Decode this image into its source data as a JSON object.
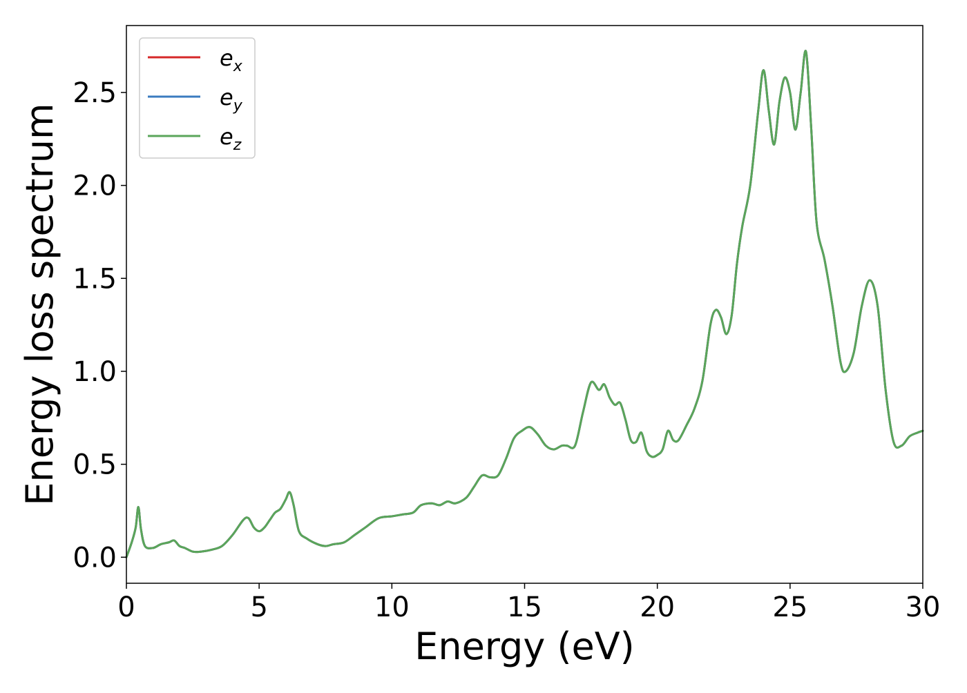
{
  "chart_data": {
    "type": "line",
    "title": "",
    "xlabel": "Energy (eV)",
    "ylabel": "Energy loss spectrum",
    "xlim": [
      0,
      30
    ],
    "ylim": [
      -0.14,
      2.86
    ],
    "xticks": [
      0,
      5,
      10,
      15,
      20,
      25,
      30
    ],
    "xtick_labels": [
      "0",
      "5",
      "10",
      "15",
      "20",
      "25",
      "30"
    ],
    "yticks": [
      0.0,
      0.5,
      1.0,
      1.5,
      2.0,
      2.5
    ],
    "ytick_labels": [
      "0.0",
      "0.5",
      "1.0",
      "1.5",
      "2.0",
      "2.5"
    ],
    "grid": false,
    "legend_position": "top-left",
    "series": [
      {
        "name": "e",
        "subscript": "x",
        "color": "#d62728",
        "shares_values_with": "e_z"
      },
      {
        "name": "e",
        "subscript": "y",
        "color": "#3a7bbf",
        "shares_values_with": "e_z"
      },
      {
        "name": "e",
        "subscript": "z",
        "color": "#5aa55a"
      }
    ],
    "x": [
      0,
      0.2,
      0.35,
      0.45,
      0.55,
      0.7,
      1.0,
      1.3,
      1.6,
      1.8,
      2.0,
      2.2,
      2.5,
      2.8,
      3.2,
      3.6,
      4.0,
      4.4,
      4.6,
      4.8,
      5.0,
      5.2,
      5.4,
      5.6,
      5.8,
      6.0,
      6.15,
      6.3,
      6.5,
      6.8,
      7.2,
      7.5,
      7.8,
      8.2,
      8.6,
      9.0,
      9.5,
      10.0,
      10.4,
      10.8,
      11.1,
      11.5,
      11.8,
      12.1,
      12.4,
      12.8,
      13.1,
      13.4,
      13.7,
      14.0,
      14.3,
      14.6,
      14.9,
      15.2,
      15.5,
      15.8,
      16.1,
      16.4,
      16.6,
      16.9,
      17.2,
      17.5,
      17.8,
      18.0,
      18.2,
      18.4,
      18.6,
      18.8,
      19.0,
      19.2,
      19.4,
      19.6,
      19.8,
      20.0,
      20.2,
      20.4,
      20.6,
      20.8,
      21.1,
      21.4,
      21.7,
      22.0,
      22.2,
      22.4,
      22.6,
      22.8,
      23.0,
      23.2,
      23.5,
      23.8,
      24.0,
      24.2,
      24.4,
      24.6,
      24.8,
      25.0,
      25.2,
      25.4,
      25.6,
      25.8,
      26.0,
      26.3,
      26.6,
      26.9,
      27.1,
      27.4,
      27.7,
      28.0,
      28.3,
      28.6,
      28.9,
      29.2,
      29.5,
      29.8,
      30.0
    ],
    "values": [
      0.0,
      0.08,
      0.16,
      0.27,
      0.15,
      0.06,
      0.05,
      0.07,
      0.08,
      0.09,
      0.06,
      0.05,
      0.03,
      0.03,
      0.04,
      0.06,
      0.12,
      0.2,
      0.21,
      0.16,
      0.14,
      0.16,
      0.2,
      0.24,
      0.26,
      0.31,
      0.35,
      0.28,
      0.14,
      0.1,
      0.07,
      0.06,
      0.07,
      0.08,
      0.12,
      0.16,
      0.21,
      0.22,
      0.23,
      0.24,
      0.28,
      0.29,
      0.28,
      0.3,
      0.29,
      0.32,
      0.38,
      0.44,
      0.43,
      0.44,
      0.53,
      0.64,
      0.68,
      0.7,
      0.66,
      0.6,
      0.58,
      0.6,
      0.6,
      0.6,
      0.78,
      0.94,
      0.9,
      0.93,
      0.86,
      0.82,
      0.83,
      0.74,
      0.63,
      0.62,
      0.67,
      0.57,
      0.54,
      0.55,
      0.58,
      0.68,
      0.63,
      0.63,
      0.71,
      0.8,
      0.95,
      1.25,
      1.33,
      1.29,
      1.2,
      1.3,
      1.58,
      1.78,
      2.0,
      2.4,
      2.62,
      2.4,
      2.22,
      2.45,
      2.58,
      2.5,
      2.3,
      2.5,
      2.72,
      2.3,
      1.8,
      1.6,
      1.35,
      1.05,
      1.0,
      1.1,
      1.35,
      1.49,
      1.35,
      0.9,
      0.62,
      0.6,
      0.65,
      0.67,
      0.68
    ]
  }
}
